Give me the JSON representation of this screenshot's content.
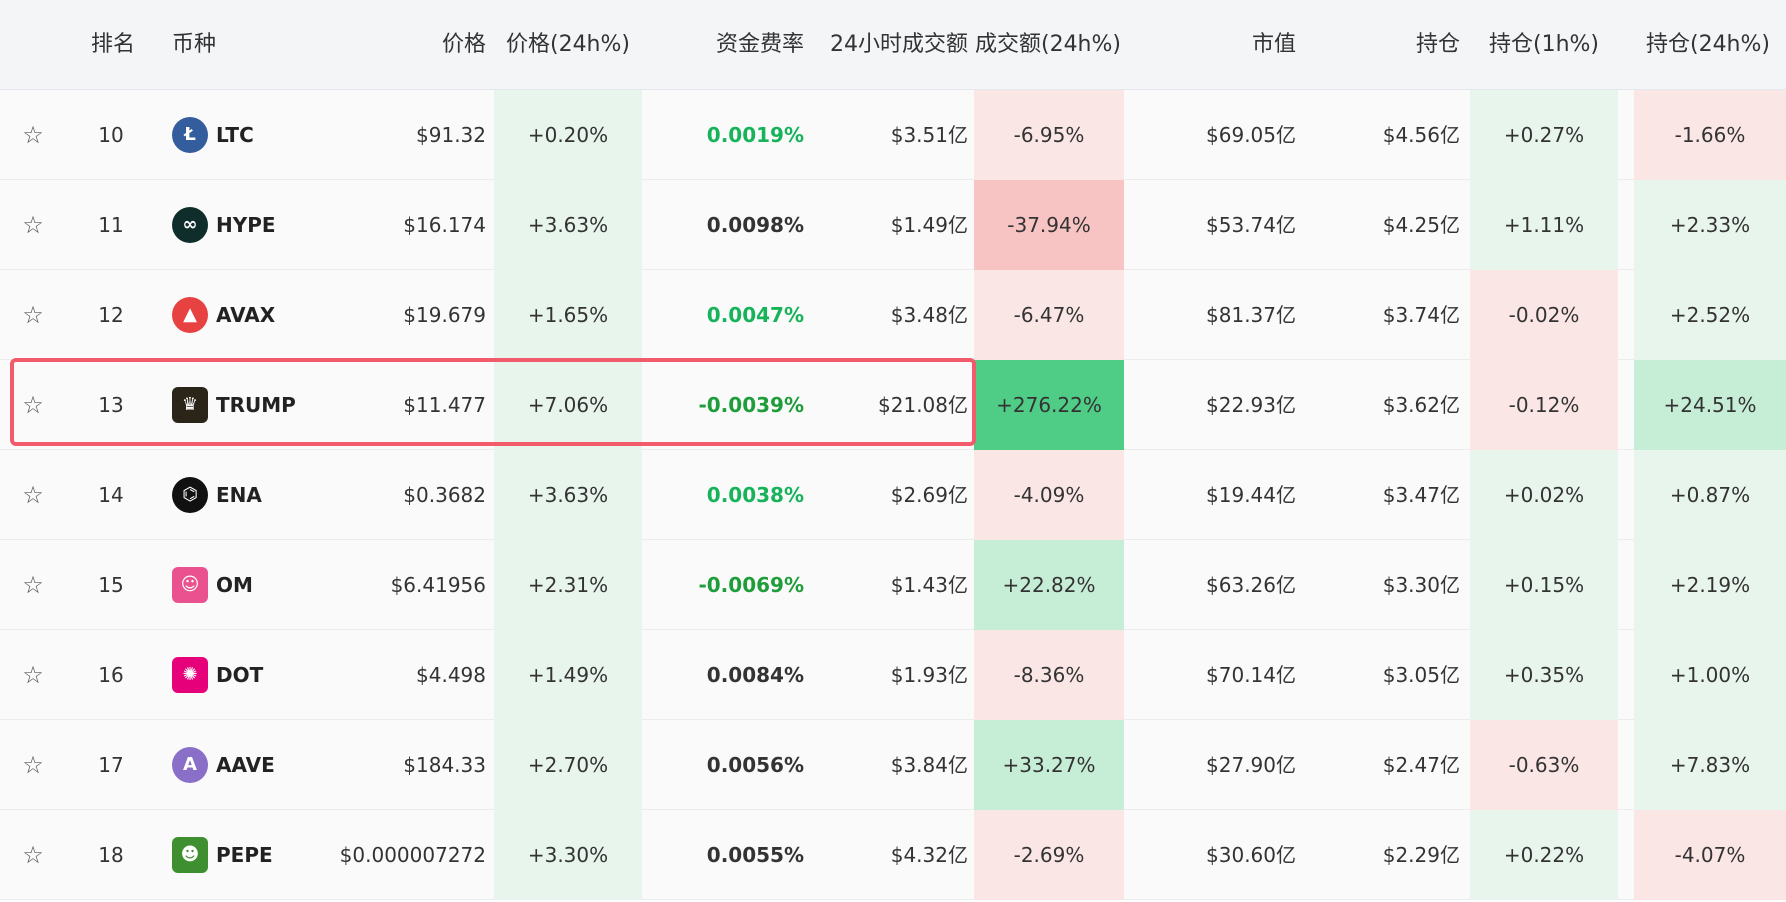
{
  "columns": {
    "rank": "排名",
    "coin": "币种",
    "price": "价格",
    "price_change": "价格(24h%)",
    "funding_rate": "资金费率",
    "volume_24h": "24小时成交额",
    "volume_change": "成交额(24h%)",
    "market_cap": "市值",
    "open_interest": "持仓",
    "oi_1h": "持仓(1h%)",
    "oi_24h": "持仓(24h%)"
  },
  "colors": {
    "green_text": "#17b35b",
    "dark_green_text": "#1f9d3a",
    "highlight_border": "#f15b6c"
  },
  "rows": [
    {
      "star": "☆",
      "rank": "10",
      "symbol": "LTC",
      "icon": "litecoin-icon",
      "icon_glyph": "Ł",
      "icon_color": "#345d9d",
      "price": "$91.32",
      "price_change": "+0.20%",
      "funding_rate": "0.0019%",
      "volume_24h": "$3.51亿",
      "volume_change": "-6.95%",
      "market_cap": "$69.05亿",
      "open_interest": "$4.56亿",
      "oi_1h": "+0.27%",
      "oi_24h": "-1.66%",
      "pc_bg": "#e8f5ec",
      "fr_color": "#17b35b",
      "vc_bg": "#fbe6e6",
      "o1_bg": "#e8f5ec",
      "o24_bg": "#fbe6e6"
    },
    {
      "star": "☆",
      "rank": "11",
      "symbol": "HYPE",
      "icon": "hype-icon",
      "icon_glyph": "∞",
      "icon_color": "#0f2e2b",
      "price": "$16.174",
      "price_change": "+3.63%",
      "funding_rate": "0.0098%",
      "volume_24h": "$1.49亿",
      "volume_change": "-37.94%",
      "market_cap": "$53.74亿",
      "open_interest": "$4.25亿",
      "oi_1h": "+1.11%",
      "oi_24h": "+2.33%",
      "pc_bg": "#e8f5ec",
      "fr_color": "#333333",
      "vc_bg": "#f7c3c3",
      "o1_bg": "#e8f5ec",
      "o24_bg": "#e8f5ec"
    },
    {
      "star": "☆",
      "rank": "12",
      "symbol": "AVAX",
      "icon": "avalanche-icon",
      "icon_glyph": "▲",
      "icon_color": "#e84142",
      "price": "$19.679",
      "price_change": "+1.65%",
      "funding_rate": "0.0047%",
      "volume_24h": "$3.48亿",
      "volume_change": "-6.47%",
      "market_cap": "$81.37亿",
      "open_interest": "$3.74亿",
      "oi_1h": "-0.02%",
      "oi_24h": "+2.52%",
      "pc_bg": "#e8f5ec",
      "fr_color": "#17b35b",
      "vc_bg": "#fbe6e6",
      "o1_bg": "#fbe6e6",
      "o24_bg": "#e8f5ec"
    },
    {
      "star": "☆",
      "rank": "13",
      "symbol": "TRUMP",
      "icon": "trump-icon",
      "icon_glyph": "♛",
      "icon_color": "#2b2418",
      "price": "$11.477",
      "price_change": "+7.06%",
      "funding_rate": "-0.0039%",
      "volume_24h": "$21.08亿",
      "volume_change": "+276.22%",
      "market_cap": "$22.93亿",
      "open_interest": "$3.62亿",
      "oi_1h": "-0.12%",
      "oi_24h": "+24.51%",
      "pc_bg": "#e8f5ec",
      "fr_color": "#1f9d3a",
      "vc_bg": "#4fcc86",
      "o1_bg": "#fbe6e6",
      "o24_bg": "#c6eed6"
    },
    {
      "star": "☆",
      "rank": "14",
      "symbol": "ENA",
      "icon": "ethena-icon",
      "icon_glyph": "⌬",
      "icon_color": "#111111",
      "price": "$0.3682",
      "price_change": "+3.63%",
      "funding_rate": "0.0038%",
      "volume_24h": "$2.69亿",
      "volume_change": "-4.09%",
      "market_cap": "$19.44亿",
      "open_interest": "$3.47亿",
      "oi_1h": "+0.02%",
      "oi_24h": "+0.87%",
      "pc_bg": "#e8f5ec",
      "fr_color": "#17b35b",
      "vc_bg": "#fbe6e6",
      "o1_bg": "#e8f5ec",
      "o24_bg": "#e8f5ec"
    },
    {
      "star": "☆",
      "rank": "15",
      "symbol": "OM",
      "icon": "mantra-icon",
      "icon_glyph": "☺",
      "icon_color": "#e9528e",
      "price": "$6.41956",
      "price_change": "+2.31%",
      "funding_rate": "-0.0069%",
      "volume_24h": "$1.43亿",
      "volume_change": "+22.82%",
      "market_cap": "$63.26亿",
      "open_interest": "$3.30亿",
      "oi_1h": "+0.15%",
      "oi_24h": "+2.19%",
      "pc_bg": "#e8f5ec",
      "fr_color": "#1f9d3a",
      "vc_bg": "#c6eed6",
      "o1_bg": "#e8f5ec",
      "o24_bg": "#e8f5ec"
    },
    {
      "star": "☆",
      "rank": "16",
      "symbol": "DOT",
      "icon": "polkadot-icon",
      "icon_glyph": "✺",
      "icon_color": "#e6007a",
      "price": "$4.498",
      "price_change": "+1.49%",
      "funding_rate": "0.0084%",
      "volume_24h": "$1.93亿",
      "volume_change": "-8.36%",
      "market_cap": "$70.14亿",
      "open_interest": "$3.05亿",
      "oi_1h": "+0.35%",
      "oi_24h": "+1.00%",
      "pc_bg": "#e8f5ec",
      "fr_color": "#333333",
      "vc_bg": "#fbe6e6",
      "o1_bg": "#e8f5ec",
      "o24_bg": "#e8f5ec"
    },
    {
      "star": "☆",
      "rank": "17",
      "symbol": "AAVE",
      "icon": "aave-icon",
      "icon_glyph": "A",
      "icon_color": "#8a6fc9",
      "price": "$184.33",
      "price_change": "+2.70%",
      "funding_rate": "0.0056%",
      "volume_24h": "$3.84亿",
      "volume_change": "+33.27%",
      "market_cap": "$27.90亿",
      "open_interest": "$2.47亿",
      "oi_1h": "-0.63%",
      "oi_24h": "+7.83%",
      "pc_bg": "#e8f5ec",
      "fr_color": "#333333",
      "vc_bg": "#c6eed6",
      "o1_bg": "#fbe6e6",
      "o24_bg": "#e8f5ec"
    },
    {
      "star": "☆",
      "rank": "18",
      "symbol": "PEPE",
      "icon": "pepe-icon",
      "icon_glyph": "☻",
      "icon_color": "#3e8f2f",
      "price": "$0.000007272",
      "price_change": "+3.30%",
      "funding_rate": "0.0055%",
      "volume_24h": "$4.32亿",
      "volume_change": "-2.69%",
      "market_cap": "$30.60亿",
      "open_interest": "$2.29亿",
      "oi_1h": "+0.22%",
      "oi_24h": "-4.07%",
      "pc_bg": "#e8f5ec",
      "fr_color": "#333333",
      "vc_bg": "#fbe6e6",
      "o1_bg": "#e8f5ec",
      "o24_bg": "#fbe6e6"
    }
  ]
}
